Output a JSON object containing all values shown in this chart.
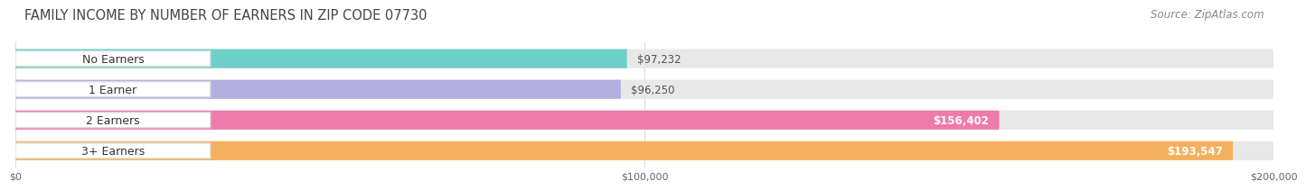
{
  "title": "FAMILY INCOME BY NUMBER OF EARNERS IN ZIP CODE 07730",
  "source": "Source: ZipAtlas.com",
  "categories": [
    "No Earners",
    "1 Earner",
    "2 Earners",
    "3+ Earners"
  ],
  "values": [
    97232,
    96250,
    156402,
    193547
  ],
  "labels": [
    "$97,232",
    "$96,250",
    "$156,402",
    "$193,547"
  ],
  "bar_colors": [
    "#6ecfca",
    "#b3b0e0",
    "#f07aaa",
    "#f5b05e"
  ],
  "bar_bg_color": "#e8e8e8",
  "xlim": [
    0,
    200000
  ],
  "xticks": [
    0,
    100000,
    200000
  ],
  "xtick_labels": [
    "$0",
    "$100,000",
    "$200,000"
  ],
  "title_fontsize": 10.5,
  "source_fontsize": 8.5,
  "label_fontsize": 8.5,
  "category_fontsize": 9,
  "bar_height": 0.62,
  "bg_color": "#ffffff",
  "title_color": "#444444",
  "source_color": "#888888",
  "label_color_inside": "#ffffff",
  "label_color_outside": "#555555",
  "category_color": "#333333",
  "label_inside_threshold": 0.72
}
